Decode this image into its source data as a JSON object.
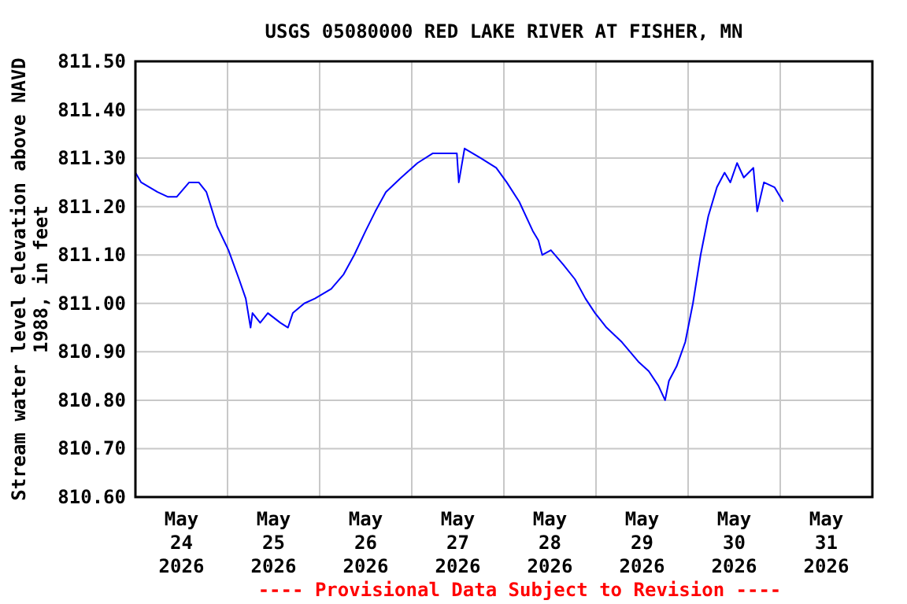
{
  "chart_data": {
    "type": "line",
    "title": "USGS 05080000 RED LAKE RIVER AT FISHER, MN",
    "ylabel": "Stream water level elevation above NAVD\n1988, in feet",
    "annotations": [
      "---- Provisional Data Subject to Revision ----"
    ],
    "x": [
      "2026-05-24T00:00",
      "2026-05-24T01:30",
      "2026-05-24T05:45",
      "2026-05-24T08:30",
      "2026-05-24T10:45",
      "2026-05-24T14:00",
      "2026-05-24T16:30",
      "2026-05-24T18:30",
      "2026-05-24T21:15",
      "2026-05-25T00:15",
      "2026-05-25T03:00",
      "2026-05-25T04:45",
      "2026-05-25T06:00",
      "2026-05-25T06:30",
      "2026-05-25T08:30",
      "2026-05-25T10:30",
      "2026-05-25T13:45",
      "2026-05-25T15:45",
      "2026-05-25T17:00",
      "2026-05-25T20:00",
      "2026-05-25T22:45",
      "2026-05-26T03:00",
      "2026-05-26T06:15",
      "2026-05-26T09:00",
      "2026-05-26T12:00",
      "2026-05-26T14:30",
      "2026-05-26T17:15",
      "2026-05-26T21:15",
      "2026-05-27T01:30",
      "2026-05-27T05:30",
      "2026-05-27T09:45",
      "2026-05-27T11:45",
      "2026-05-27T12:15",
      "2026-05-27T13:45",
      "2026-05-27T18:00",
      "2026-05-27T22:00",
      "2026-05-28T00:45",
      "2026-05-28T04:00",
      "2026-05-28T07:30",
      "2026-05-28T09:00",
      "2026-05-28T10:00",
      "2026-05-28T12:15",
      "2026-05-28T15:30",
      "2026-05-28T18:30",
      "2026-05-28T21:15",
      "2026-05-28T23:45",
      "2026-05-29T02:45",
      "2026-05-29T06:45",
      "2026-05-29T11:00",
      "2026-05-29T13:45",
      "2026-05-29T16:15",
      "2026-05-29T18:00",
      "2026-05-29T19:00",
      "2026-05-29T21:00",
      "2026-05-29T23:15",
      "2026-05-30T01:15",
      "2026-05-30T03:15",
      "2026-05-30T05:15",
      "2026-05-30T07:30",
      "2026-05-30T09:30",
      "2026-05-30T11:00",
      "2026-05-30T12:45",
      "2026-05-30T14:30",
      "2026-05-30T17:00",
      "2026-05-30T18:00",
      "2026-05-30T19:45",
      "2026-05-30T22:30",
      "2026-05-31T00:45"
    ],
    "series": [
      {
        "color": "#0000ff",
        "values": [
          811.27,
          811.25,
          811.23,
          811.22,
          811.22,
          811.25,
          811.25,
          811.23,
          811.16,
          811.11,
          811.05,
          811.01,
          810.95,
          810.98,
          810.96,
          810.98,
          810.96,
          810.95,
          810.98,
          811.0,
          811.01,
          811.03,
          811.06,
          811.1,
          811.15,
          811.19,
          811.23,
          811.26,
          811.29,
          811.31,
          811.31,
          811.31,
          811.25,
          811.32,
          811.3,
          811.28,
          811.25,
          811.21,
          811.15,
          811.13,
          811.1,
          811.11,
          811.08,
          811.05,
          811.01,
          810.98,
          810.95,
          810.92,
          810.88,
          810.86,
          810.83,
          810.8,
          810.84,
          810.87,
          810.92,
          811.0,
          811.1,
          811.18,
          811.24,
          811.27,
          811.25,
          811.29,
          811.26,
          811.28,
          811.19,
          811.25,
          811.24,
          811.21
        ]
      }
    ],
    "xlim": [
      "2026-05-24T00:00",
      "2026-06-01T00:00"
    ],
    "xticks": [
      {
        "value": "2026-05-24T12:00",
        "label": "May\n24\n2026"
      },
      {
        "value": "2026-05-25T12:00",
        "label": "May\n25\n2026"
      },
      {
        "value": "2026-05-26T12:00",
        "label": "May\n26\n2026"
      },
      {
        "value": "2026-05-27T12:00",
        "label": "May\n27\n2026"
      },
      {
        "value": "2026-05-28T12:00",
        "label": "May\n28\n2026"
      },
      {
        "value": "2026-05-29T12:00",
        "label": "May\n29\n2026"
      },
      {
        "value": "2026-05-30T12:00",
        "label": "May\n30\n2026"
      },
      {
        "value": "2026-05-31T12:00",
        "label": "May\n31\n2026"
      },
      {
        "value": "2026-05-25T00:00",
        "label": null
      },
      {
        "value": "2026-05-26T00:00",
        "label": null
      },
      {
        "value": "2026-05-27T00:00",
        "label": null
      },
      {
        "value": "2026-05-28T00:00",
        "label": null
      },
      {
        "value": "2026-05-29T00:00",
        "label": null
      },
      {
        "value": "2026-05-30T00:00",
        "label": null
      },
      {
        "value": "2026-05-31T00:00",
        "label": null
      }
    ],
    "ylim": [
      810.6,
      811.5
    ],
    "yticks": [
      {
        "value": 810.6,
        "label": "810.60"
      },
      {
        "value": 810.7,
        "label": "810.70"
      },
      {
        "value": 810.8,
        "label": "810.80"
      },
      {
        "value": 810.9,
        "label": "810.90"
      },
      {
        "value": 811.0,
        "label": "811.00"
      },
      {
        "value": 811.1,
        "label": "811.10"
      },
      {
        "value": 811.2,
        "label": "811.20"
      },
      {
        "value": 811.3,
        "label": "811.30"
      },
      {
        "value": 811.4,
        "label": "811.40"
      },
      {
        "value": 811.5,
        "label": "811.50"
      }
    ],
    "grid": true,
    "line_style": "solid"
  }
}
